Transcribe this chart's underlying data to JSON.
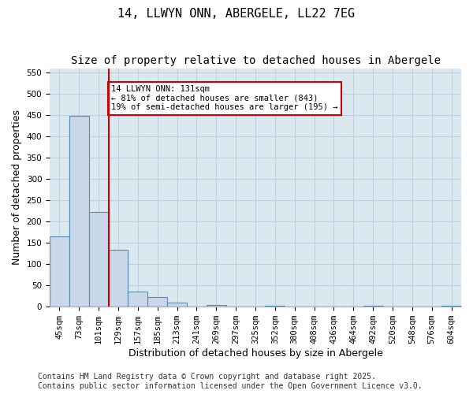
{
  "title": "14, LLWYN ONN, ABERGELE, LL22 7EG",
  "subtitle": "Size of property relative to detached houses in Abergele",
  "xlabel": "Distribution of detached houses by size in Abergele",
  "ylabel": "Number of detached properties",
  "categories": [
    "45sqm",
    "73sqm",
    "101sqm",
    "129sqm",
    "157sqm",
    "185sqm",
    "213sqm",
    "241sqm",
    "269sqm",
    "297sqm",
    "325sqm",
    "352sqm",
    "380sqm",
    "408sqm",
    "436sqm",
    "464sqm",
    "492sqm",
    "520sqm",
    "548sqm",
    "576sqm",
    "604sqm"
  ],
  "values": [
    165,
    449,
    222,
    133,
    35,
    22,
    9,
    0,
    4,
    0,
    0,
    3,
    0,
    0,
    0,
    0,
    2,
    0,
    0,
    0,
    2
  ],
  "bar_color": "#c8d8e8",
  "bar_edge_color": "#5a8ab0",
  "grid_color": "#c0cfe0",
  "background_color": "#dce8f0",
  "vline_x": 3,
  "vline_color": "#cc0000",
  "annotation_text": "14 LLWYN ONN: 131sqm\n← 81% of detached houses are smaller (843)\n19% of semi-detached houses are larger (195) →",
  "annotation_box_color": "#cc0000",
  "ylim": [
    0,
    560
  ],
  "yticks": [
    0,
    50,
    100,
    150,
    200,
    250,
    300,
    350,
    400,
    450,
    500,
    550
  ],
  "footer": "Contains HM Land Registry data © Crown copyright and database right 2025.\nContains public sector information licensed under the Open Government Licence v3.0.",
  "title_fontsize": 11,
  "subtitle_fontsize": 10,
  "tick_fontsize": 7.5,
  "label_fontsize": 9,
  "footer_fontsize": 7
}
